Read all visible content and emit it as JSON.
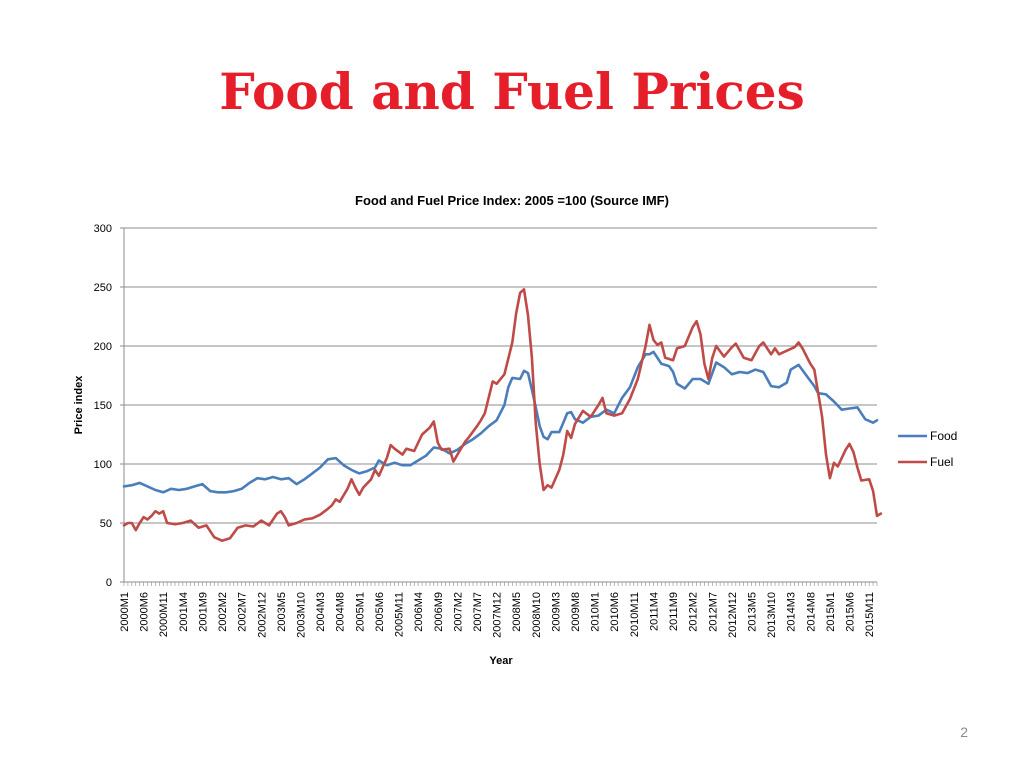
{
  "slide": {
    "title": "Food and Fuel Prices",
    "page_number": "2",
    "title_color": "#e61e2a"
  },
  "chart_data": {
    "type": "line",
    "title": "Food and Fuel Price Index: 2005 =100 (Source IMF)",
    "xlabel": "Year",
    "ylabel": "Price index",
    "ylim": [
      0,
      300
    ],
    "yticks": [
      0,
      50,
      100,
      150,
      200,
      250,
      300
    ],
    "grid": true,
    "legend_position": "right",
    "x_tick_labels": [
      "2000M1",
      "2000M6",
      "2000M11",
      "2001M4",
      "2001M9",
      "2002M2",
      "2002M7",
      "2002M12",
      "2003M5",
      "2003M10",
      "2004M3",
      "2004M8",
      "2005M1",
      "2005M6",
      "2005M11",
      "2006M4",
      "2006M9",
      "2007M2",
      "2007M7",
      "2007M12",
      "2008M5",
      "2008M10",
      "2009M3",
      "2009M8",
      "2010M1",
      "2010M6",
      "2010M11",
      "2011M4",
      "2011M9",
      "2012M2",
      "2012M7",
      "2012M12",
      "2013M5",
      "2013M10",
      "2014M3",
      "2014M8",
      "2015M1",
      "2015M6",
      "2015M11"
    ],
    "x_start": "2000M1",
    "x_end": "2016M1",
    "series": [
      {
        "name": "Food",
        "color": "#4a7ebb",
        "points": [
          [
            "2000M1",
            81
          ],
          [
            "2000M3",
            82
          ],
          [
            "2000M5",
            84
          ],
          [
            "2000M7",
            81
          ],
          [
            "2000M9",
            78
          ],
          [
            "2000M11",
            76
          ],
          [
            "2001M1",
            79
          ],
          [
            "2001M3",
            78
          ],
          [
            "2001M5",
            79
          ],
          [
            "2001M7",
            81
          ],
          [
            "2001M9",
            83
          ],
          [
            "2001M11",
            77
          ],
          [
            "2002M1",
            76
          ],
          [
            "2002M3",
            76
          ],
          [
            "2002M5",
            77
          ],
          [
            "2002M7",
            79
          ],
          [
            "2002M9",
            84
          ],
          [
            "2002M11",
            88
          ],
          [
            "2003M1",
            87
          ],
          [
            "2003M3",
            89
          ],
          [
            "2003M5",
            87
          ],
          [
            "2003M7",
            88
          ],
          [
            "2003M9",
            83
          ],
          [
            "2003M11",
            87
          ],
          [
            "2004M1",
            92
          ],
          [
            "2004M3",
            97
          ],
          [
            "2004M5",
            104
          ],
          [
            "2004M7",
            105
          ],
          [
            "2004M9",
            99
          ],
          [
            "2004M11",
            95
          ],
          [
            "2005M1",
            92
          ],
          [
            "2005M3",
            94
          ],
          [
            "2005M5",
            97
          ],
          [
            "2005M6",
            103
          ],
          [
            "2005M8",
            99
          ],
          [
            "2005M10",
            101
          ],
          [
            "2005M12",
            99
          ],
          [
            "2006M2",
            99
          ],
          [
            "2006M4",
            103
          ],
          [
            "2006M6",
            107
          ],
          [
            "2006M8",
            114
          ],
          [
            "2006M10",
            113
          ],
          [
            "2006M12",
            109
          ],
          [
            "2007M2",
            112
          ],
          [
            "2007M4",
            117
          ],
          [
            "2007M6",
            121
          ],
          [
            "2007M8",
            126
          ],
          [
            "2007M10",
            132
          ],
          [
            "2007M12",
            137
          ],
          [
            "2008M2",
            150
          ],
          [
            "2008M3",
            165
          ],
          [
            "2008M4",
            173
          ],
          [
            "2008M6",
            172
          ],
          [
            "2008M7",
            179
          ],
          [
            "2008M8",
            177
          ],
          [
            "2008M9",
            163
          ],
          [
            "2008M10",
            148
          ],
          [
            "2008M11",
            132
          ],
          [
            "2008M12",
            123
          ],
          [
            "2009M1",
            121
          ],
          [
            "2009M2",
            127
          ],
          [
            "2009M4",
            127
          ],
          [
            "2009M5",
            135
          ],
          [
            "2009M6",
            143
          ],
          [
            "2009M7",
            144
          ],
          [
            "2009M8",
            138
          ],
          [
            "2009M10",
            135
          ],
          [
            "2009M12",
            140
          ],
          [
            "2010M2",
            141
          ],
          [
            "2010M4",
            146
          ],
          [
            "2010M6",
            143
          ],
          [
            "2010M8",
            156
          ],
          [
            "2010M10",
            165
          ],
          [
            "2010M12",
            182
          ],
          [
            "2011M2",
            193
          ],
          [
            "2011M3",
            193
          ],
          [
            "2011M4",
            195
          ],
          [
            "2011M6",
            185
          ],
          [
            "2011M8",
            183
          ],
          [
            "2011M9",
            178
          ],
          [
            "2011M10",
            168
          ],
          [
            "2011M12",
            164
          ],
          [
            "2012M2",
            172
          ],
          [
            "2012M4",
            172
          ],
          [
            "2012M6",
            168
          ],
          [
            "2012M8",
            186
          ],
          [
            "2012M10",
            182
          ],
          [
            "2012M12",
            176
          ],
          [
            "2013M2",
            178
          ],
          [
            "2013M4",
            177
          ],
          [
            "2013M6",
            180
          ],
          [
            "2013M8",
            178
          ],
          [
            "2013M9",
            172
          ],
          [
            "2013M10",
            166
          ],
          [
            "2013M12",
            165
          ],
          [
            "2014M2",
            169
          ],
          [
            "2014M3",
            180
          ],
          [
            "2014M5",
            184
          ],
          [
            "2014M7",
            175
          ],
          [
            "2014M9",
            166
          ],
          [
            "2014M10",
            160
          ],
          [
            "2014M12",
            159
          ],
          [
            "2015M2",
            153
          ],
          [
            "2015M4",
            146
          ],
          [
            "2015M6",
            147
          ],
          [
            "2015M8",
            148
          ],
          [
            "2015M10",
            138
          ],
          [
            "2015M12",
            135
          ],
          [
            "2016M1",
            137
          ]
        ]
      },
      {
        "name": "Fuel",
        "color": "#be4b48",
        "points": [
          [
            "2000M1",
            48
          ],
          [
            "2000M2",
            50
          ],
          [
            "2000M3",
            50
          ],
          [
            "2000M4",
            44
          ],
          [
            "2000M5",
            50
          ],
          [
            "2000M6",
            55
          ],
          [
            "2000M7",
            53
          ],
          [
            "2000M8",
            56
          ],
          [
            "2000M9",
            60
          ],
          [
            "2000M10",
            58
          ],
          [
            "2000M11",
            60
          ],
          [
            "2000M12",
            50
          ],
          [
            "2001M2",
            49
          ],
          [
            "2001M4",
            50
          ],
          [
            "2001M6",
            52
          ],
          [
            "2001M8",
            46
          ],
          [
            "2001M10",
            48
          ],
          [
            "2001M12",
            38
          ],
          [
            "2002M2",
            35
          ],
          [
            "2002M4",
            37
          ],
          [
            "2002M6",
            46
          ],
          [
            "2002M8",
            48
          ],
          [
            "2002M10",
            47
          ],
          [
            "2002M12",
            52
          ],
          [
            "2003M2",
            48
          ],
          [
            "2003M4",
            58
          ],
          [
            "2003M5",
            60
          ],
          [
            "2003M6",
            55
          ],
          [
            "2003M7",
            48
          ],
          [
            "2003M9",
            50
          ],
          [
            "2003M11",
            53
          ],
          [
            "2004M1",
            54
          ],
          [
            "2004M3",
            57
          ],
          [
            "2004M5",
            62
          ],
          [
            "2004M6",
            65
          ],
          [
            "2004M7",
            70
          ],
          [
            "2004M8",
            68
          ],
          [
            "2004M10",
            79
          ],
          [
            "2004M11",
            87
          ],
          [
            "2004M12",
            80
          ],
          [
            "2005M1",
            74
          ],
          [
            "2005M2",
            80
          ],
          [
            "2005M4",
            87
          ],
          [
            "2005M5",
            95
          ],
          [
            "2005M6",
            90
          ],
          [
            "2005M8",
            105
          ],
          [
            "2005M9",
            116
          ],
          [
            "2005M10",
            113
          ],
          [
            "2005M12",
            108
          ],
          [
            "2006M1",
            113
          ],
          [
            "2006M3",
            111
          ],
          [
            "2006M5",
            125
          ],
          [
            "2006M6",
            128
          ],
          [
            "2006M7",
            131
          ],
          [
            "2006M8",
            136
          ],
          [
            "2006M9",
            118
          ],
          [
            "2006M10",
            112
          ],
          [
            "2006M12",
            113
          ],
          [
            "2007M1",
            102
          ],
          [
            "2007M2",
            108
          ],
          [
            "2007M4",
            119
          ],
          [
            "2007M5",
            123
          ],
          [
            "2007M7",
            132
          ],
          [
            "2007M8",
            137
          ],
          [
            "2007M9",
            143
          ],
          [
            "2007M11",
            170
          ],
          [
            "2007M12",
            168
          ],
          [
            "2008M2",
            176
          ],
          [
            "2008M4",
            203
          ],
          [
            "2008M5",
            228
          ],
          [
            "2008M6",
            245
          ],
          [
            "2008M7",
            248
          ],
          [
            "2008M8",
            226
          ],
          [
            "2008M9",
            190
          ],
          [
            "2008M10",
            134
          ],
          [
            "2008M11",
            100
          ],
          [
            "2008M12",
            78
          ],
          [
            "2009M1",
            82
          ],
          [
            "2009M2",
            80
          ],
          [
            "2009M4",
            95
          ],
          [
            "2009M5",
            108
          ],
          [
            "2009M6",
            128
          ],
          [
            "2009M7",
            122
          ],
          [
            "2009M8",
            134
          ],
          [
            "2009M10",
            145
          ],
          [
            "2009M12",
            140
          ],
          [
            "2010M2",
            150
          ],
          [
            "2010M3",
            156
          ],
          [
            "2010M4",
            143
          ],
          [
            "2010M6",
            141
          ],
          [
            "2010M8",
            143
          ],
          [
            "2010M10",
            155
          ],
          [
            "2010M12",
            172
          ],
          [
            "2011M2",
            200
          ],
          [
            "2011M3",
            218
          ],
          [
            "2011M4",
            205
          ],
          [
            "2011M5",
            201
          ],
          [
            "2011M6",
            203
          ],
          [
            "2011M7",
            190
          ],
          [
            "2011M9",
            188
          ],
          [
            "2011M10",
            198
          ],
          [
            "2011M12",
            200
          ],
          [
            "2012M2",
            216
          ],
          [
            "2012M3",
            221
          ],
          [
            "2012M4",
            210
          ],
          [
            "2012M5",
            185
          ],
          [
            "2012M6",
            172
          ],
          [
            "2012M7",
            190
          ],
          [
            "2012M8",
            200
          ],
          [
            "2012M10",
            191
          ],
          [
            "2012M12",
            199
          ],
          [
            "2013M1",
            202
          ],
          [
            "2013M3",
            190
          ],
          [
            "2013M5",
            188
          ],
          [
            "2013M7",
            200
          ],
          [
            "2013M8",
            203
          ],
          [
            "2013M10",
            193
          ],
          [
            "2013M11",
            198
          ],
          [
            "2013M12",
            193
          ],
          [
            "2014M2",
            196
          ],
          [
            "2014M4",
            199
          ],
          [
            "2014M5",
            203
          ],
          [
            "2014M6",
            198
          ],
          [
            "2014M8",
            185
          ],
          [
            "2014M9",
            180
          ],
          [
            "2014M10",
            160
          ],
          [
            "2014M11",
            140
          ],
          [
            "2014M12",
            108
          ],
          [
            "2015M1",
            88
          ],
          [
            "2015M2",
            101
          ],
          [
            "2015M3",
            98
          ],
          [
            "2015M5",
            112
          ],
          [
            "2015M6",
            117
          ],
          [
            "2015M7",
            110
          ],
          [
            "2015M8",
            97
          ],
          [
            "2015M9",
            86
          ],
          [
            "2015M11",
            87
          ],
          [
            "2015M12",
            77
          ],
          [
            "2016M1",
            56
          ],
          [
            "2016M2",
            58
          ]
        ]
      }
    ]
  }
}
